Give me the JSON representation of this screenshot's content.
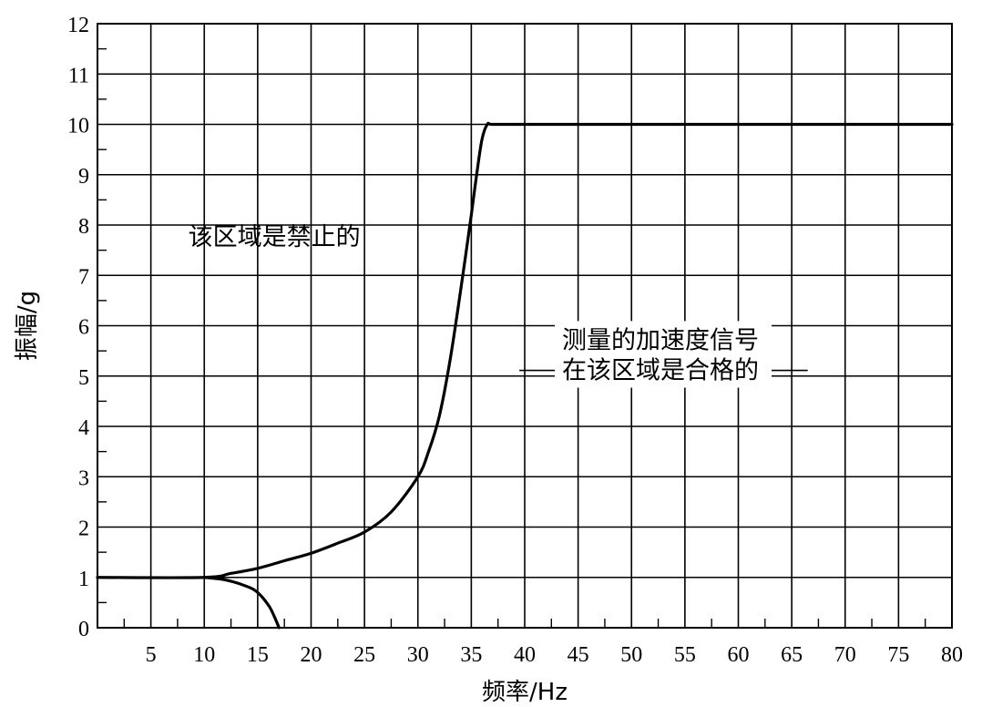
{
  "chart_data": {
    "type": "line",
    "xlabel": "频率/Hz",
    "ylabel": "振幅/g",
    "xlim": [
      0,
      80
    ],
    "ylim": [
      0,
      12
    ],
    "x_ticks": [
      5,
      10,
      15,
      20,
      25,
      30,
      35,
      40,
      45,
      50,
      55,
      60,
      65,
      70,
      75,
      80
    ],
    "y_ticks": [
      0,
      1,
      2,
      3,
      4,
      5,
      6,
      7,
      8,
      9,
      10,
      11,
      12
    ],
    "grid": true,
    "series": [
      {
        "x": [
          0,
          10,
          12.5,
          15,
          17.5,
          20,
          22.5,
          25,
          27.5,
          30,
          31,
          32,
          33,
          34,
          35,
          35.5,
          36,
          36.5,
          37,
          40,
          45,
          50,
          55,
          60,
          65,
          70,
          75,
          80
        ],
        "y": [
          1.0,
          1.0,
          1.08,
          1.18,
          1.33,
          1.48,
          1.68,
          1.9,
          2.3,
          3.0,
          3.5,
          4.2,
          5.3,
          6.7,
          8.2,
          9.0,
          9.7,
          10.0,
          10.0,
          10.0,
          10.0,
          10.0,
          10.0,
          10.0,
          10.0,
          10.0,
          10.0,
          10.0
        ]
      },
      {
        "x": [
          10,
          12,
          14,
          15,
          16,
          16.5,
          17
        ],
        "y": [
          1.0,
          0.95,
          0.82,
          0.7,
          0.45,
          0.25,
          0.0
        ]
      }
    ],
    "annotations": [
      {
        "text": "该区域是禁止的",
        "x": 8.5,
        "y": 7.6
      },
      {
        "text": "测量的加速度信号",
        "x": 43.5,
        "y": 5.55
      },
      {
        "text": "在该区域是合格的",
        "x": 43.5,
        "y": 4.95
      }
    ]
  }
}
